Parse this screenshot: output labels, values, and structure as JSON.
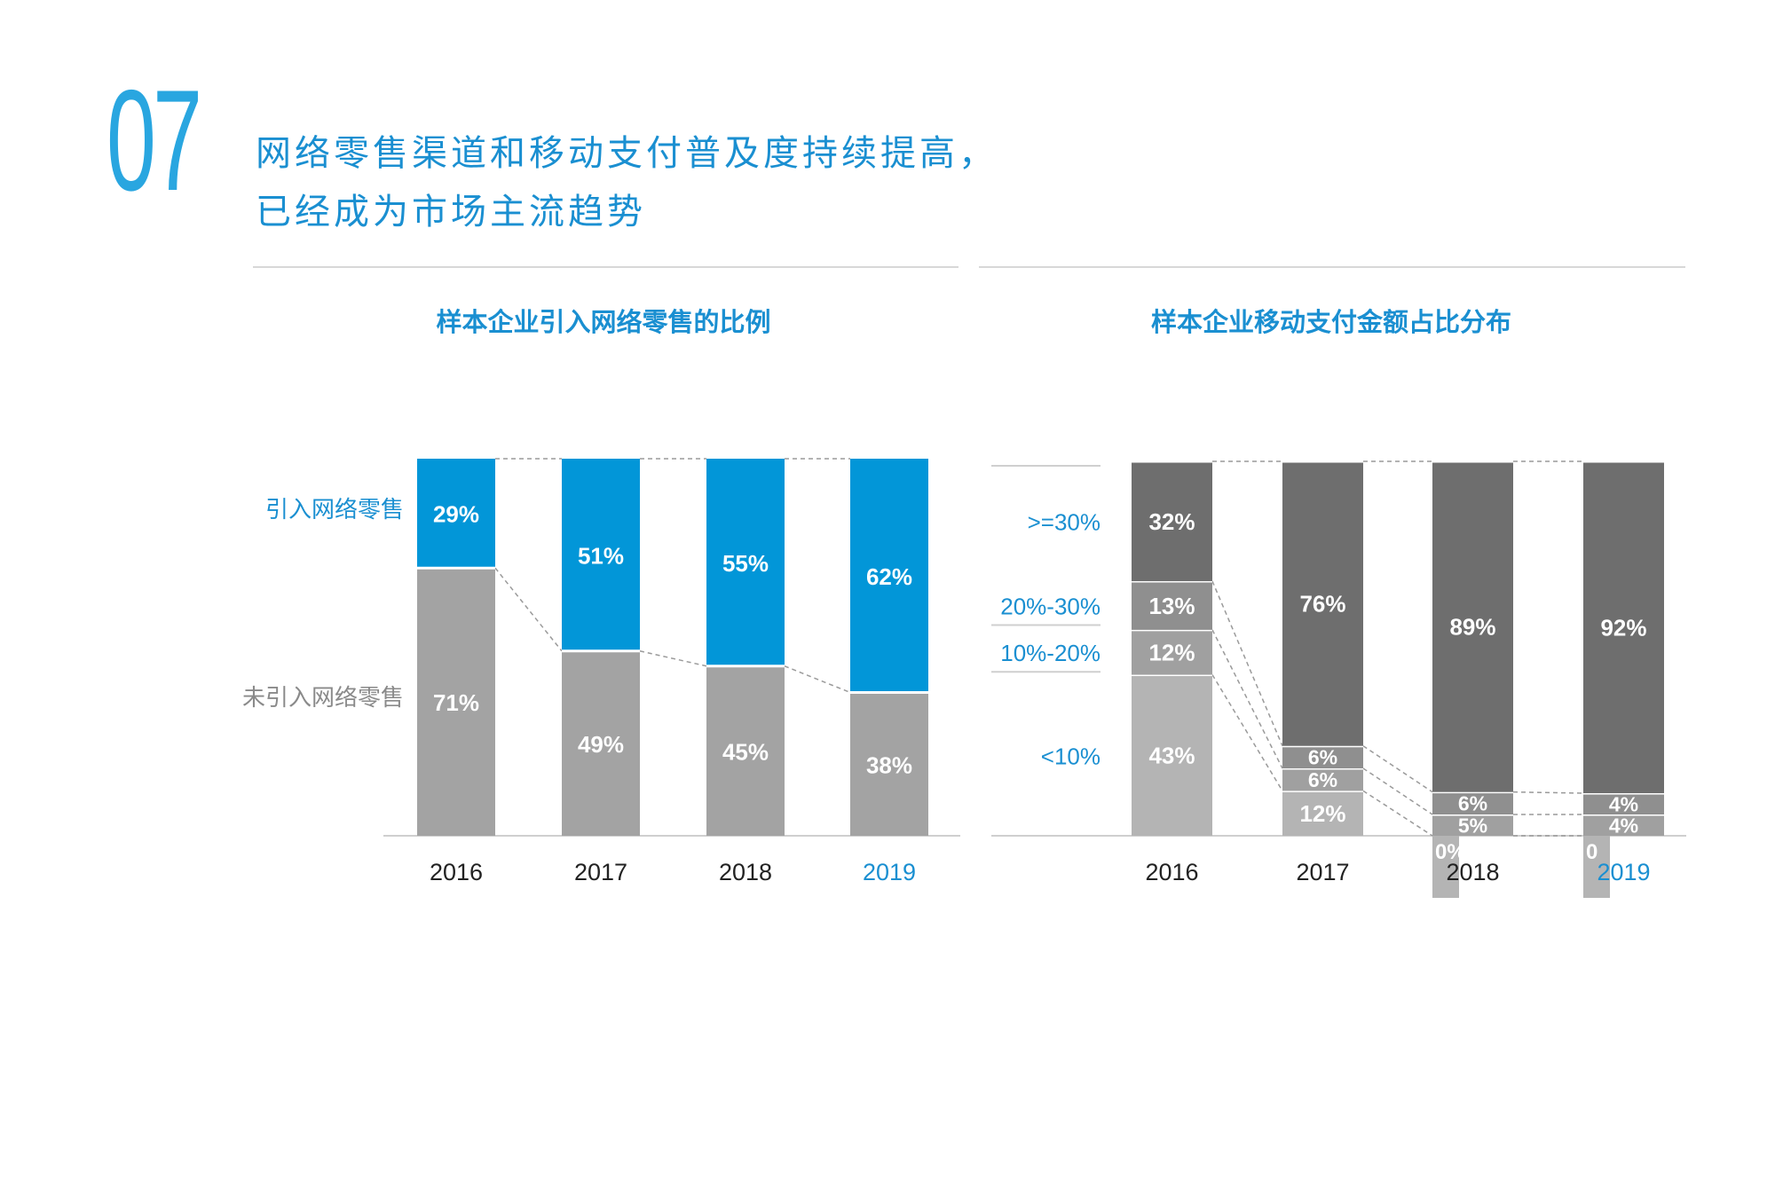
{
  "header": {
    "number": "07",
    "headline_line1": "网络零售渠道和移动支付普及度持续提高，",
    "headline_line2": "已经成为市场主流趋势"
  },
  "colors": {
    "accent": "#1a8fd1",
    "blue_bar": "#0296d8",
    "gray_bar": "#a3a3a3",
    "dark_gray": "#6e6e6e",
    "mid_gray": "#8f8f8f",
    "light_gray": "#b4b4b4"
  },
  "chart_data": [
    {
      "type": "bar",
      "stacked": true,
      "title": "样本企业引入网络零售的比例",
      "categories": [
        "2016",
        "2017",
        "2018",
        "2019"
      ],
      "highlight_category": "2019",
      "ylim": [
        0,
        100
      ],
      "series": [
        {
          "name": "未引入网络零售",
          "values": [
            71,
            49,
            45,
            38
          ],
          "labels": [
            "71%",
            "49%",
            "45%",
            "38%"
          ],
          "color": "#a3a3a3"
        },
        {
          "name": "引入网络零售",
          "values": [
            29,
            51,
            55,
            62
          ],
          "labels": [
            "29%",
            "51%",
            "55%",
            "62%"
          ],
          "color": "#0296d8"
        }
      ]
    },
    {
      "type": "bar",
      "stacked": true,
      "title": "样本企业移动支付金额占比分布",
      "categories": [
        "2016",
        "2017",
        "2018",
        "2019"
      ],
      "highlight_category": "2019",
      "ylim": [
        0,
        100
      ],
      "series": [
        {
          "name": "<10%",
          "values": [
            43,
            12,
            0,
            0
          ],
          "labels": [
            "43%",
            "12%",
            "0%",
            "0"
          ],
          "color": "#b4b4b4"
        },
        {
          "name": "10%-20%",
          "values": [
            12,
            6,
            5,
            4
          ],
          "labels": [
            "12%",
            "6%",
            "5%",
            "4%"
          ],
          "color": "#a0a0a0"
        },
        {
          "name": "20%-30%",
          "values": [
            13,
            6,
            6,
            4
          ],
          "labels": [
            "13%",
            "6%",
            "6%",
            "4%"
          ],
          "color": "#8f8f8f"
        },
        {
          "name": ">=30%",
          "values": [
            32,
            76,
            89,
            92
          ],
          "labels": [
            "32%",
            "76%",
            "89%",
            "92%"
          ],
          "color": "#6e6e6e"
        }
      ]
    }
  ]
}
